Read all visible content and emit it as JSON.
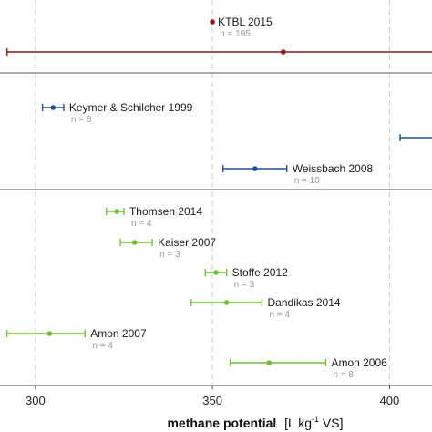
{
  "chart_data": {
    "type": "scatter",
    "subtype": "point-with-error-bars",
    "xlabel_bold": "methane potential",
    "xlabel_unit_pre": "[L kg",
    "xlabel_unit_sup": "-1",
    "xlabel_unit_post": " VS]",
    "xlim": [
      290,
      412
    ],
    "xticks": [
      "300",
      "350",
      "400"
    ],
    "xtick_values": [
      300,
      350,
      400
    ],
    "grid": "vertical dashed",
    "panels": [
      {
        "color": "#8b1a1a",
        "entries": [
          {
            "label": "KTBL 2015",
            "n": "n = 195",
            "value": 350,
            "low": null,
            "high": null
          },
          {
            "label": "",
            "n": "",
            "value": 370,
            "low": 292,
            "high": 412
          }
        ]
      },
      {
        "color": "#1f4e9c",
        "entries": [
          {
            "label": "Keymer & Schilcher 1999",
            "n": "n = 8",
            "value": 305,
            "low": 302,
            "high": 308
          },
          {
            "label": "",
            "n": "",
            "value": null,
            "low": 403,
            "high": 412
          },
          {
            "label": "Weissbach 2008",
            "n": "n = 10",
            "value": 362,
            "low": 353,
            "high": 371
          }
        ]
      },
      {
        "color": "#6ac42a",
        "entries": [
          {
            "label": "Thomsen 2014",
            "n": "n = 4",
            "value": 323,
            "low": 320,
            "high": 325
          },
          {
            "label": "Kaiser 2007",
            "n": "n = 3",
            "value": 328,
            "low": 324,
            "high": 333
          },
          {
            "label": "Stoffe 2012",
            "n": "n = 3",
            "value": 351,
            "low": 348,
            "high": 354
          },
          {
            "label": "Dandikas 2014",
            "n": "n = 4",
            "value": 354,
            "low": 344,
            "high": 364
          },
          {
            "label": "Amon 2007",
            "n": "n = 4",
            "value": 304,
            "low": 292,
            "high": 314
          },
          {
            "label": "Amon 2006",
            "n": "n = 8",
            "value": 366,
            "low": 355,
            "high": 382
          }
        ]
      }
    ]
  }
}
